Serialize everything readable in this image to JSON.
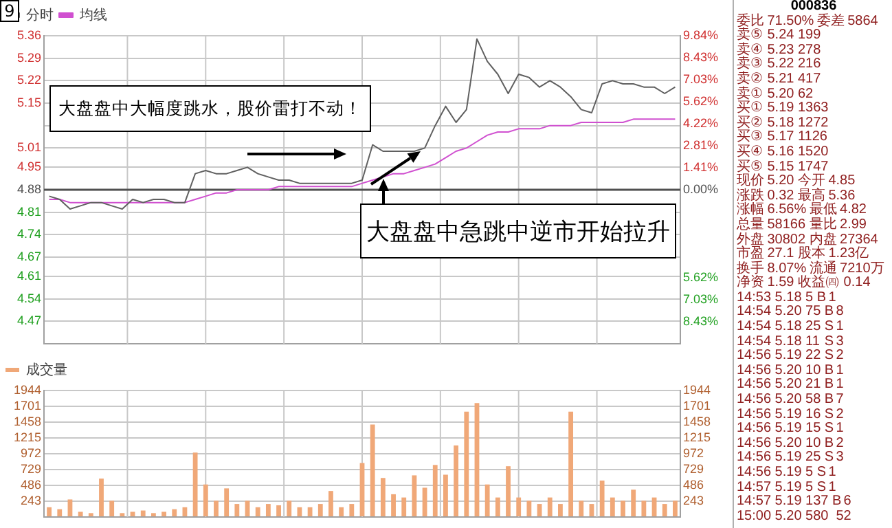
{
  "chart_data": [
    {
      "type": "line",
      "categories": [
        null,
        null,
        null,
        null,
        null,
        null,
        null,
        null,
        null,
        null,
        null,
        null,
        null,
        null,
        null,
        null,
        null,
        null,
        null,
        null,
        null,
        null,
        null,
        null,
        null,
        null,
        null,
        null,
        null,
        null,
        null,
        null,
        null,
        null,
        null,
        null,
        null,
        null,
        null,
        null,
        null,
        null,
        null,
        null,
        null,
        null,
        null,
        null,
        null,
        null,
        null,
        null,
        null,
        null,
        null,
        null,
        null,
        null,
        null,
        null,
        null
      ],
      "series": [
        {
          "name": "分时",
          "color": "#606060",
          "values": [
            4.86,
            4.85,
            4.82,
            4.83,
            4.84,
            4.84,
            4.83,
            4.82,
            4.85,
            4.84,
            4.85,
            4.85,
            4.84,
            4.84,
            4.93,
            4.94,
            4.93,
            4.93,
            4.94,
            4.95,
            4.93,
            4.92,
            4.91,
            4.91,
            4.9,
            4.9,
            4.9,
            4.9,
            4.9,
            4.9,
            4.91,
            5.02,
            5.0,
            5.0,
            5.0,
            5.0,
            5.01,
            5.08,
            5.14,
            5.09,
            5.13,
            5.35,
            5.28,
            5.24,
            5.18,
            5.24,
            5.23,
            5.2,
            5.22,
            5.2,
            5.17,
            5.13,
            5.12,
            5.21,
            5.22,
            5.21,
            5.21,
            5.2,
            5.2,
            5.18,
            5.2
          ]
        },
        {
          "name": "均线",
          "color": "#d050d0",
          "values": [
            4.85,
            4.85,
            4.84,
            4.84,
            4.84,
            4.84,
            4.84,
            4.84,
            4.84,
            4.84,
            4.84,
            4.84,
            4.84,
            4.84,
            4.85,
            4.86,
            4.87,
            4.87,
            4.88,
            4.88,
            4.88,
            4.88,
            4.89,
            4.89,
            4.89,
            4.89,
            4.89,
            4.89,
            4.89,
            4.89,
            4.9,
            4.91,
            4.92,
            4.93,
            4.93,
            4.94,
            4.95,
            4.96,
            4.98,
            5.0,
            5.01,
            5.03,
            5.05,
            5.06,
            5.06,
            5.07,
            5.07,
            5.07,
            5.08,
            5.08,
            5.08,
            5.09,
            5.09,
            5.09,
            5.09,
            5.09,
            5.1,
            5.1,
            5.1,
            5.1,
            5.1
          ]
        }
      ],
      "ylim": [
        4.4,
        5.36
      ],
      "yticks": [
        5.36,
        5.29,
        5.22,
        5.15,
        {
          "value": 5.08,
          "label": null
        },
        5.01,
        4.95,
        4.88,
        4.81,
        4.74,
        4.67,
        4.61,
        4.54,
        4.47
      ],
      "y2lim": [
        -9.84,
        9.84
      ],
      "y2ticks": [
        {
          "value": 9.84,
          "label": "9.84%"
        },
        {
          "value": 8.43,
          "label": "8.43%"
        },
        {
          "value": 7.03,
          "label": "7.03%"
        },
        {
          "value": 5.62,
          "label": "5.62%"
        },
        {
          "value": 4.22,
          "label": "4.22%"
        },
        {
          "value": 2.81,
          "label": "2.81%"
        },
        {
          "value": 1.41,
          "label": "1.41%"
        },
        {
          "value": 0,
          "label": "0.00%"
        },
        {
          "value": -1.41,
          "label": null
        },
        {
          "value": -2.81,
          "label": null
        },
        {
          "value": -4.22,
          "label": null
        },
        {
          "value": -5.62,
          "label": "5.62%"
        },
        {
          "value": -7.03,
          "label": "7.03%"
        },
        {
          "value": -8.43,
          "label": "8.43%"
        }
      ],
      "ref_lines": [
        {
          "axis": "y",
          "value": 4.88,
          "color": "#505050"
        }
      ],
      "grid": true,
      "legend": "top left",
      "marker": "none",
      "line_style": "solid",
      "annotations": [
        "大盘盘中大幅度跳水，股价雷打不动！",
        "大盘盘中急跳中逆市开始拉升",
        "9"
      ]
    },
    {
      "type": "bar",
      "categories": [
        null,
        null,
        null,
        null,
        null,
        null,
        null,
        null,
        null,
        null,
        null,
        null,
        null,
        null,
        null,
        null,
        null,
        null,
        null,
        null,
        null,
        null,
        null,
        null,
        null,
        null,
        null,
        null,
        null,
        null,
        null,
        null,
        null,
        null,
        null,
        null,
        null,
        null,
        null,
        null,
        null,
        null,
        null,
        null,
        null,
        null,
        null,
        null,
        null,
        null,
        null,
        null,
        null,
        null,
        null,
        null,
        null,
        null,
        null,
        null,
        null
      ],
      "series": [
        {
          "name": "成交量",
          "color": "#f0a878",
          "values": [
            150,
            120,
            270,
            80,
            60,
            590,
            250,
            60,
            80,
            100,
            60,
            80,
            120,
            150,
            990,
            500,
            250,
            440,
            200,
            250,
            150,
            200,
            180,
            250,
            150,
            150,
            200,
            400,
            150,
            200,
            830,
            1420,
            600,
            350,
            300,
            640,
            450,
            800,
            650,
            1100,
            1620,
            1750,
            500,
            300,
            780,
            300,
            250,
            200,
            300,
            200,
            1620,
            250,
            200,
            560,
            300,
            250,
            420,
            250,
            300,
            200,
            250
          ]
        }
      ],
      "ylim": [
        0,
        1944
      ],
      "yticks": [
        {
          "value": 0,
          "label": null
        },
        243,
        486,
        729,
        972,
        1215,
        1458,
        1701,
        1944
      ],
      "y2lim": [
        0,
        1944
      ],
      "y2ticks": [
        {
          "value": 0,
          "label": null
        },
        243,
        486,
        729,
        972,
        1215,
        1458,
        1701,
        1944
      ],
      "grid": true,
      "legend": "top left"
    },
    {
      "type": "other",
      "title": "000836",
      "annotations": [
        "委比\t71.50%\t委差\t5864",
        "卖⑤\t5.24\t199",
        "卖④\t5.23\t278",
        "卖③\t5.22\t216",
        "卖②\t5.21\t417",
        "卖①\t5.20\t62",
        "买①\t5.19\t1363",
        "买②\t5.18\t1272",
        "买③\t5.17\t1126",
        "买④\t5.16\t1520",
        "买⑤\t5.15\t1747",
        "现价\t5.20\t今开\t4.85",
        "涨跌\t0.32\t最高\t5.36",
        "涨幅\t6.56%\t最低\t4.82",
        "总量\t58166\t量比\t2.99",
        "外盘\t30802\t内盘\t27364",
        "市盈\t27.1\t股本\t1.23亿",
        "换手\t8.07%\t流通\t7210万",
        "净资\t1.59\t收益㈣\t0.14",
        "14:53\t5.18\t5\tB\t1",
        "14:54\t5.20\t75\tB\t8",
        "14:54\t5.18\t25\tS\t1",
        "14:54\t5.18\t11\tS\t3",
        "14:56\t5.19\t22\tS\t2",
        "14:56\t5.20\t10\tB\t1",
        "14:56\t5.20\t21\tB\t1",
        "14:56\t5.20\t58\tB\t7",
        "14:56\t5.19\t16\tS\t2",
        "14:56\t5.19\t15\tS\t1",
        "14:56\t5.20\t10\tB\t2",
        "14:56\t5.19\t25\tS\t3",
        "14:56\t5.19\t5\tS\t1",
        "14:57\t5.19\t5\tS\t1",
        "14:57\t5.19\t137\tB\t6",
        "15:00\t5.20\t580\t\t52"
      ]
    }
  ]
}
